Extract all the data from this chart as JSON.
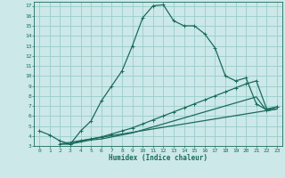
{
  "xlabel": "Humidex (Indice chaleur)",
  "bg_color": "#cce8e8",
  "grid_color": "#99cccc",
  "line_color": "#1a6b5a",
  "xlim": [
    -0.5,
    23.5
  ],
  "ylim": [
    3,
    17.4
  ],
  "xticks": [
    0,
    1,
    2,
    3,
    4,
    5,
    6,
    7,
    8,
    9,
    10,
    11,
    12,
    13,
    14,
    15,
    16,
    17,
    18,
    19,
    20,
    21,
    22,
    23
  ],
  "yticks": [
    3,
    4,
    5,
    6,
    7,
    8,
    9,
    10,
    11,
    12,
    13,
    14,
    15,
    16,
    17
  ],
  "line1_x": [
    0,
    1,
    2,
    3,
    4,
    5,
    6,
    7,
    8,
    9,
    10,
    11,
    12,
    13,
    14,
    15,
    16,
    17,
    18,
    19,
    20,
    21,
    22,
    23
  ],
  "line1_y": [
    4.5,
    4.1,
    3.5,
    3.2,
    4.5,
    5.5,
    7.5,
    9.0,
    10.5,
    13.0,
    15.8,
    17.0,
    17.1,
    15.5,
    15.0,
    15.0,
    14.2,
    12.8,
    10.0,
    9.5,
    9.8,
    7.2,
    6.6,
    6.9
  ],
  "line2_x": [
    2,
    3,
    4,
    5,
    6,
    7,
    8,
    9,
    10,
    11,
    12,
    13,
    14,
    15,
    16,
    17,
    18,
    19,
    20,
    21,
    22,
    23
  ],
  "line2_y": [
    3.2,
    3.2,
    3.5,
    3.7,
    3.9,
    4.2,
    4.5,
    4.8,
    5.2,
    5.6,
    6.0,
    6.4,
    6.8,
    7.2,
    7.6,
    8.0,
    8.4,
    8.8,
    9.2,
    9.5,
    6.7,
    6.9
  ],
  "line3_x": [
    2,
    3,
    4,
    5,
    6,
    7,
    8,
    9,
    10,
    11,
    12,
    13,
    14,
    15,
    16,
    17,
    18,
    19,
    20,
    21,
    22,
    23
  ],
  "line3_y": [
    3.2,
    3.2,
    3.4,
    3.6,
    3.7,
    3.9,
    4.1,
    4.3,
    4.6,
    4.9,
    5.2,
    5.5,
    5.8,
    6.1,
    6.4,
    6.7,
    7.0,
    7.3,
    7.6,
    7.9,
    6.5,
    6.7
  ],
  "line4_x": [
    2,
    23
  ],
  "line4_y": [
    3.2,
    6.7
  ]
}
